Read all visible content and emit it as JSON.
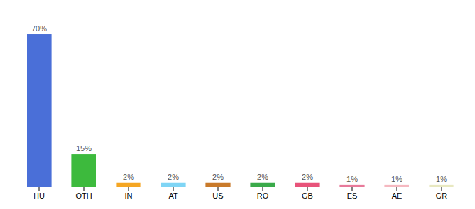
{
  "chart_data": {
    "type": "bar",
    "categories": [
      "HU",
      "OTH",
      "IN",
      "AT",
      "US",
      "RO",
      "GB",
      "ES",
      "AE",
      "GR"
    ],
    "values": [
      70,
      15,
      2,
      2,
      2,
      2,
      2,
      1,
      1,
      1
    ],
    "value_labels": [
      "70%",
      "15%",
      "2%",
      "2%",
      "2%",
      "2%",
      "2%",
      "1%",
      "1%",
      "1%"
    ],
    "colors": [
      "#4a6fd8",
      "#3dba3d",
      "#f5a623",
      "#7fd5f5",
      "#c97a2a",
      "#3aaa4a",
      "#e8537a",
      "#e87a9a",
      "#f5b8c0",
      "#e8e8c0"
    ],
    "ylim": [
      0,
      78
    ],
    "yticks": [],
    "grid": false,
    "data_labels": true,
    "tick_labels": "x"
  }
}
